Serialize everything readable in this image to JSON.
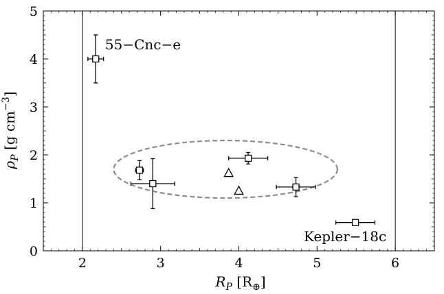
{
  "chart_data": {
    "type": "scatter",
    "title": "",
    "xlabel": {
      "base": "R",
      "sub": "P",
      "unit_open": " [R",
      "unit_sub": "⊕",
      "unit_close": "]"
    },
    "ylabel": {
      "base": "ρ",
      "sub": "P",
      "unit_open": " [g cm",
      "unit_sup": "−3",
      "unit_close": "]"
    },
    "xlim": [
      1.5,
      6.5
    ],
    "ylim": [
      0,
      5
    ],
    "xticks": [
      2,
      3,
      4,
      5,
      6
    ],
    "yticks": [
      0,
      1,
      2,
      3,
      4,
      5
    ],
    "grid": false,
    "legend": "none",
    "vertical_lines": [
      2,
      6
    ],
    "series": [
      {
        "marker": "square",
        "points": [
          {
            "x": 2.17,
            "y": 4.0,
            "xerr": 0.1,
            "yerr": 0.5
          },
          {
            "x": 2.73,
            "y": 1.68,
            "xerr": 0.05,
            "yerr": 0.2
          },
          {
            "x": 2.9,
            "y": 1.4,
            "xerr": 0.28,
            "yerr": 0.52
          },
          {
            "x": 4.12,
            "y": 1.93,
            "xerr": 0.25,
            "yerr": 0.12
          },
          {
            "x": 4.73,
            "y": 1.33,
            "xerr": 0.25,
            "yerr": 0.2
          },
          {
            "x": 5.49,
            "y": 0.59,
            "xerr": 0.25,
            "yerr": 0.05
          }
        ]
      },
      {
        "marker": "triangle",
        "points": [
          {
            "x": 3.87,
            "y": 1.62
          },
          {
            "x": 4.0,
            "y": 1.25
          }
        ]
      }
    ],
    "ellipse": {
      "cx": 3.83,
      "cy": 1.7,
      "rx": 1.43,
      "ry": 0.6
    },
    "annotations": [
      {
        "text": "55−Cnc−e",
        "x": 2.29,
        "y": 4.2
      },
      {
        "text": "Kepler−18c",
        "x": 4.83,
        "y": 0.2
      }
    ]
  }
}
